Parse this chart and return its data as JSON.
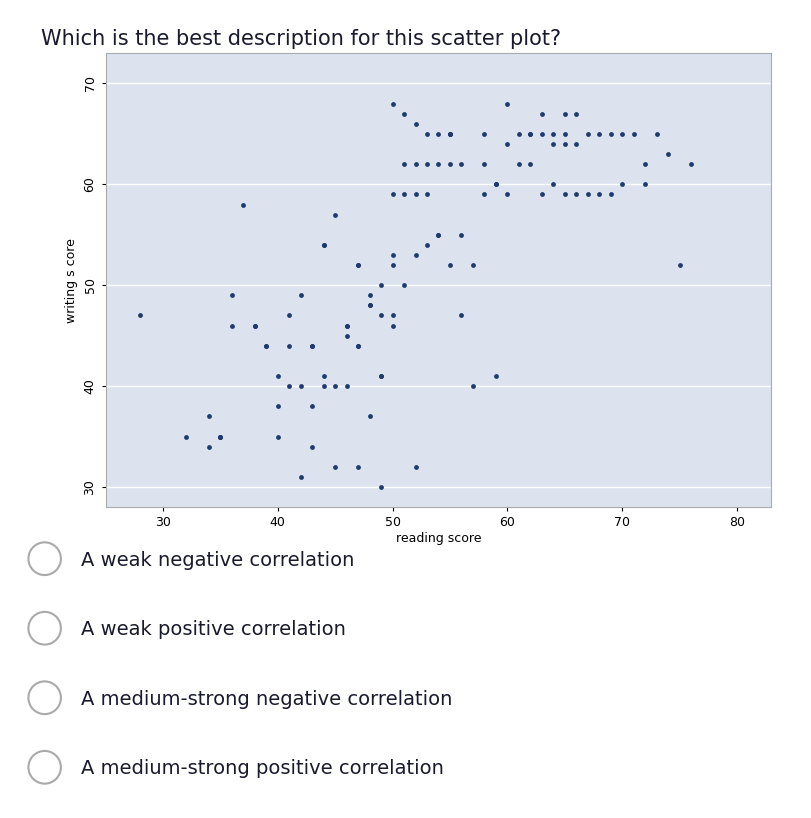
{
  "title": "Which is the best description for this scatter plot?",
  "xlabel": "reading score",
  "ylabel": "writing s core",
  "xlim": [
    25,
    83
  ],
  "ylim": [
    28,
    73
  ],
  "xticks": [
    30,
    40,
    50,
    60,
    70,
    80
  ],
  "yticks": [
    30,
    40,
    50,
    60,
    70
  ],
  "dot_color": "#1f3a6e",
  "plot_bg": "#dce3ef",
  "outer_bg": "#dce3ef",
  "options": [
    "A weak negative correlation",
    "A weak positive correlation",
    "A medium-strong negative correlation",
    "A medium-strong positive correlation"
  ],
  "x": [
    28,
    32,
    34,
    34,
    35,
    35,
    35,
    36,
    36,
    37,
    38,
    38,
    39,
    39,
    40,
    40,
    40,
    41,
    41,
    41,
    42,
    42,
    42,
    43,
    43,
    43,
    43,
    44,
    44,
    44,
    44,
    45,
    45,
    45,
    46,
    46,
    46,
    46,
    47,
    47,
    47,
    47,
    47,
    48,
    48,
    48,
    48,
    49,
    49,
    49,
    49,
    49,
    50,
    50,
    50,
    50,
    50,
    50,
    51,
    51,
    51,
    51,
    52,
    52,
    52,
    52,
    52,
    53,
    53,
    53,
    53,
    54,
    54,
    54,
    54,
    55,
    55,
    55,
    55,
    55,
    56,
    56,
    56,
    57,
    57,
    58,
    58,
    58,
    59,
    59,
    59,
    60,
    60,
    60,
    61,
    61,
    62,
    62,
    62,
    63,
    63,
    63,
    64,
    64,
    64,
    65,
    65,
    65,
    65,
    66,
    66,
    66,
    67,
    67,
    68,
    68,
    69,
    69,
    70,
    70,
    71,
    72,
    72,
    73,
    74,
    75,
    76
  ],
  "y": [
    47,
    35,
    37,
    34,
    35,
    35,
    35,
    49,
    46,
    58,
    46,
    46,
    44,
    44,
    41,
    38,
    35,
    47,
    44,
    40,
    40,
    49,
    31,
    44,
    44,
    38,
    34,
    40,
    54,
    54,
    41,
    57,
    40,
    32,
    45,
    46,
    46,
    40,
    52,
    52,
    44,
    44,
    32,
    48,
    49,
    48,
    37,
    50,
    47,
    41,
    41,
    30,
    68,
    52,
    53,
    47,
    46,
    59,
    67,
    62,
    59,
    50,
    66,
    62,
    59,
    53,
    32,
    65,
    62,
    59,
    54,
    65,
    55,
    62,
    55,
    62,
    65,
    65,
    65,
    52,
    55,
    62,
    47,
    52,
    40,
    59,
    65,
    62,
    60,
    60,
    41,
    68,
    64,
    59,
    65,
    62,
    65,
    65,
    62,
    67,
    65,
    59,
    65,
    64,
    60,
    65,
    67,
    64,
    59,
    64,
    59,
    67,
    65,
    59,
    65,
    59,
    65,
    59,
    60,
    65,
    65,
    60,
    62,
    65,
    63,
    52,
    62
  ]
}
